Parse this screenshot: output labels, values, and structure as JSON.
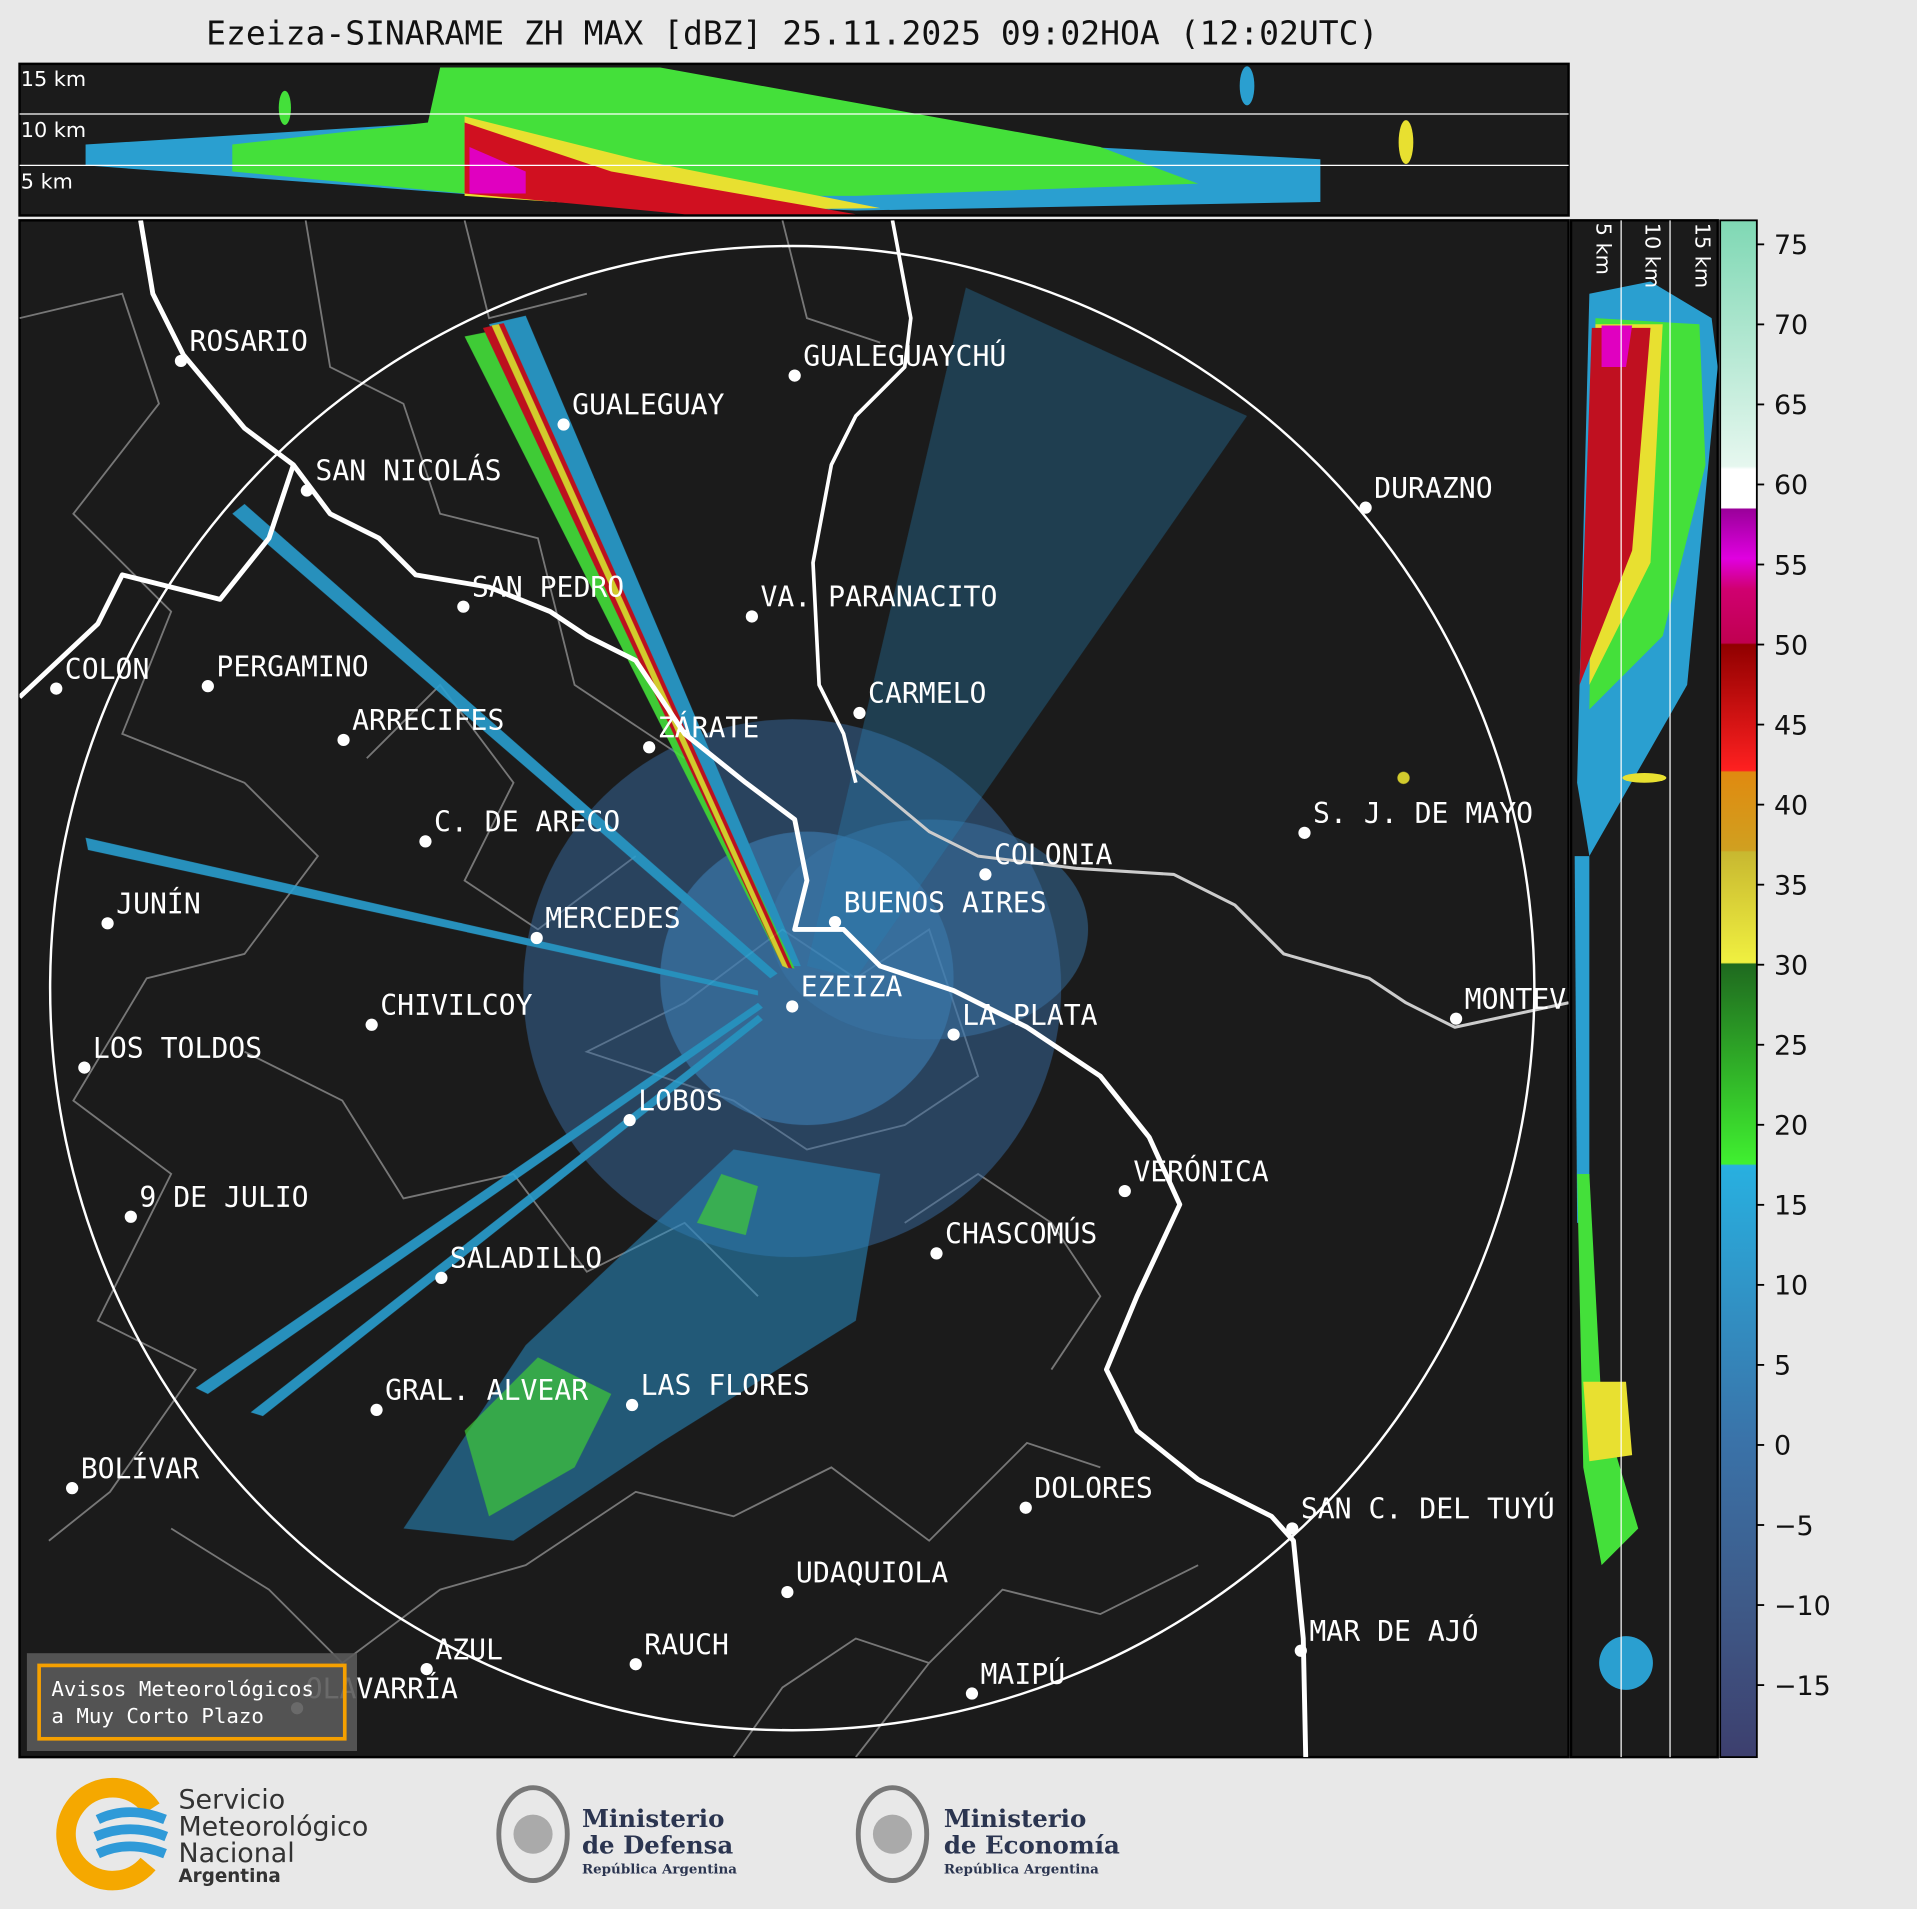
{
  "title": "Ezeiza-SINARAME ZH MAX [dBZ] 25.11.2025 09:02HOA (12:02UTC)",
  "top_panel": {
    "labels": [
      "15 km",
      "10 km",
      "5 km"
    ]
  },
  "side_panel": {
    "labels": [
      "5 km",
      "10 km",
      "15 km"
    ]
  },
  "colorbar": {
    "ylim": [
      -19.5,
      76.5
    ],
    "ticks": [
      {
        "value": -15,
        "label": "−15"
      },
      {
        "value": -10,
        "label": "−10"
      },
      {
        "value": -5,
        "label": "−5"
      },
      0,
      5,
      10,
      15,
      20,
      25,
      30,
      35,
      40,
      45,
      50,
      55,
      60,
      65,
      70,
      75
    ]
  },
  "cities": [
    "ROSARIO",
    "GUALEGUAYCHÚ",
    "GUALEGUAY",
    "SAN NICOLÁS",
    "DURAZNO",
    "SAN PEDRO",
    "VA. PARANACITO",
    "COLON",
    "PERGAMINO",
    "CARMELO",
    "ARRECIFES",
    "ZÁRATE",
    "C. DE ARECO",
    "S. J. DE MAYO",
    "COLONIA",
    "BUENOS AIRES",
    "MERCEDES",
    "JUNÍN",
    "EZEIZA",
    "CHIVILCOY",
    "LA PLATA",
    "MONTEVIDEO",
    "LOS TOLDOS",
    "LOBOS",
    "VERÓNICA",
    "9 DE JULIO",
    "CHASCOMÚS",
    "SALADILLO",
    "GRAL. ALVEAR",
    "LAS FLORES",
    "BOLÍVAR",
    "DOLORES",
    "SAN C. DEL TUYÚ",
    "UDAQUIOLA",
    "MAR DE AJÓ",
    "AZUL",
    "RAUCH",
    "OLAVARRÍA",
    "MAIPÚ"
  ],
  "notice": {
    "lines": [
      "Avisos Meteorológicos",
      "a Muy Corto Plazo"
    ]
  },
  "logos": {
    "smn": [
      "Servicio",
      "Meteorológico",
      "Nacional",
      "Argentina"
    ],
    "defensa": [
      "Ministerio",
      "de Defensa",
      "República Argentina"
    ],
    "economia": [
      "Ministerio",
      "de Economía",
      "República Argentina"
    ]
  }
}
